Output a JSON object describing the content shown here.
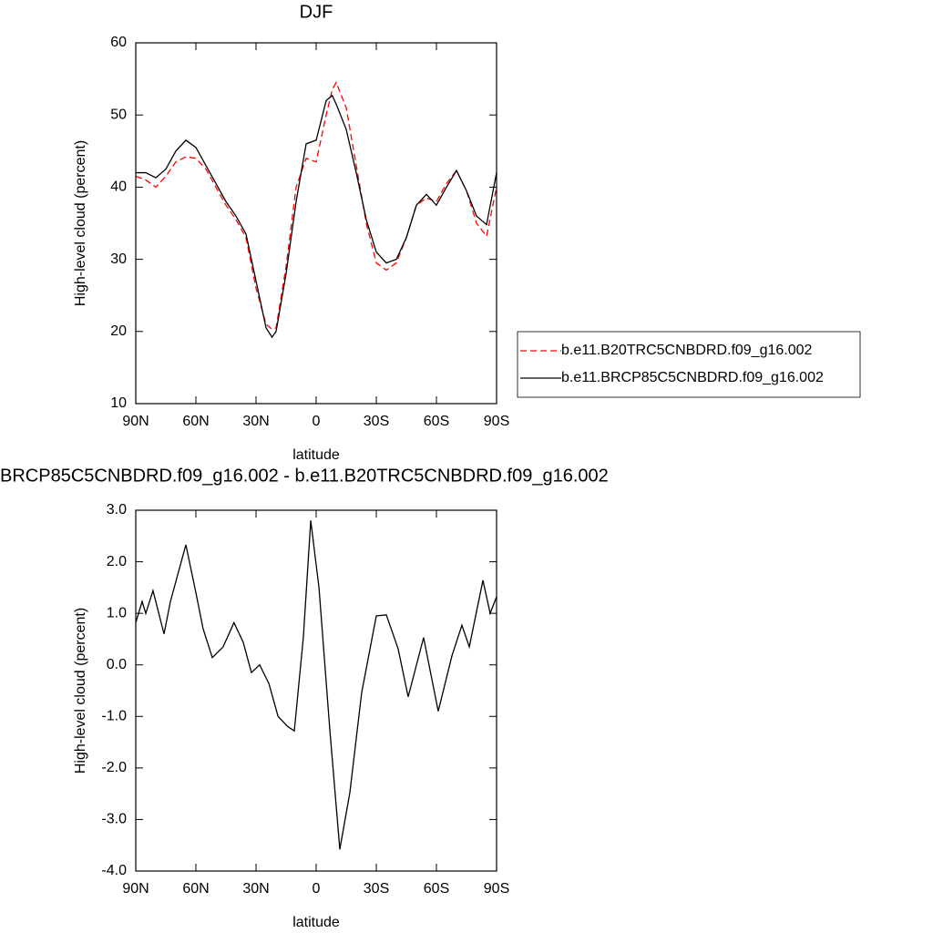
{
  "chart_data": [
    {
      "type": "line",
      "title": "DJF",
      "xlabel": "latitude",
      "ylabel": "High-level cloud (percent)",
      "x": [
        90,
        85,
        80,
        75,
        70,
        65,
        60,
        55,
        50,
        45,
        40,
        35,
        30,
        25,
        22,
        20,
        15,
        10,
        5,
        0,
        -5,
        -8,
        -10,
        -15,
        -20,
        -25,
        -30,
        -35,
        -40,
        -45,
        -50,
        -55,
        -60,
        -65,
        -70,
        -75,
        -80,
        -85,
        -90
      ],
      "series": [
        {
          "name": "b.e11.B20TRC5CNBDRD.f09_g16.002",
          "color": "#ff0000",
          "style": "dashed",
          "values": [
            41.5,
            41,
            40,
            41.5,
            43.5,
            44.2,
            44,
            42.5,
            40,
            37.5,
            35.5,
            33,
            26,
            21,
            20.3,
            20.5,
            29,
            40,
            44,
            43.5,
            50,
            53.5,
            54.5,
            51,
            43,
            35,
            29.5,
            28.5,
            29.5,
            33,
            37.5,
            38.5,
            38,
            40.5,
            42.3,
            39.5,
            35,
            33.2,
            40
          ]
        },
        {
          "name": "b.e11.BRCP85C5CNBDRD.f09_g16.002",
          "color": "#000000",
          "style": "solid",
          "values": [
            42,
            42,
            41.3,
            42.5,
            45,
            46.5,
            45.5,
            43,
            40.5,
            38,
            36,
            33.5,
            27,
            20.5,
            19.2,
            20,
            28,
            38,
            46,
            46.5,
            52,
            52.7,
            51.5,
            48,
            42,
            35.5,
            31,
            29.5,
            30,
            33,
            37.5,
            39,
            37.5,
            40,
            42.3,
            39.5,
            36,
            34.8,
            42
          ]
        }
      ],
      "xlim": [
        90,
        -90
      ],
      "xticks": [
        {
          "value": 90,
          "label": "90N"
        },
        {
          "value": 60,
          "label": "60N"
        },
        {
          "value": 30,
          "label": "30N"
        },
        0,
        {
          "value": -30,
          "label": "30S"
        },
        {
          "value": -60,
          "label": "60S"
        },
        {
          "value": -90,
          "label": "90S"
        }
      ],
      "ylim": [
        10,
        60
      ],
      "yticks": [
        10,
        20,
        30,
        40,
        50,
        60
      ]
    },
    {
      "type": "line",
      "title": "BRCP85C5CNBDRD.f09_g16.002 - b.e11.B20TRC5CNBDRD.f09_g16.002",
      "xlabel": "latitude",
      "ylabel": "High-level cloud (percent)",
      "x": [
        90,
        86.8,
        85,
        81.4,
        75.9,
        72.7,
        65,
        60,
        56.4,
        51.8,
        46.4,
        41,
        36.4,
        32.3,
        28.2,
        23.6,
        19,
        14.1,
        10.9,
        6.4,
        2.7,
        -1.4,
        -6.8,
        -11.8,
        -16.8,
        -22.7,
        -30,
        -35,
        -40.9,
        -45.9,
        -53.6,
        -60.9,
        -67.7,
        -72.7,
        -76.4,
        -83.2,
        -86.8,
        -90
      ],
      "series": [
        {
          "color": "#000000",
          "style": "solid",
          "values": [
            0.82,
            1.23,
            1.0,
            1.44,
            0.6,
            1.23,
            2.33,
            1.4,
            0.7,
            0.14,
            0.35,
            0.82,
            0.44,
            -0.15,
            0.0,
            -0.36,
            -1.0,
            -1.2,
            -1.28,
            0.53,
            2.8,
            1.5,
            -1.25,
            -3.58,
            -2.48,
            -0.54,
            0.95,
            0.97,
            0.31,
            -0.62,
            0.53,
            -0.9,
            0.17,
            0.77,
            0.35,
            1.64,
            1.0,
            1.32
          ]
        }
      ],
      "xlim": [
        90,
        -90
      ],
      "xticks": [
        {
          "value": 90,
          "label": "90N"
        },
        {
          "value": 60,
          "label": "60N"
        },
        {
          "value": 30,
          "label": "30N"
        },
        0,
        {
          "value": -30,
          "label": "30S"
        },
        {
          "value": -60,
          "label": "60S"
        },
        {
          "value": -90,
          "label": "90S"
        }
      ],
      "ylim": [
        -4,
        3
      ],
      "yticks": [
        {
          "value": -4,
          "label": "-4.0"
        },
        {
          "value": -3,
          "label": "-3.0"
        },
        {
          "value": -2,
          "label": "-2.0"
        },
        {
          "value": -1,
          "label": "-1.0"
        },
        {
          "value": 0,
          "label": "0.0"
        },
        {
          "value": 1,
          "label": "1.0"
        },
        {
          "value": 2,
          "label": "2.0"
        },
        {
          "value": 3,
          "label": "3.0"
        }
      ]
    }
  ]
}
